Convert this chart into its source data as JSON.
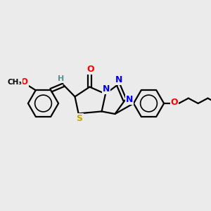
{
  "bg_color": "#ebebeb",
  "bond_color": "#000000",
  "atom_colors": {
    "O": "#ff0000",
    "N": "#0000ff",
    "S": "#c8a800",
    "C": "#000000",
    "H": "#5a9090"
  }
}
